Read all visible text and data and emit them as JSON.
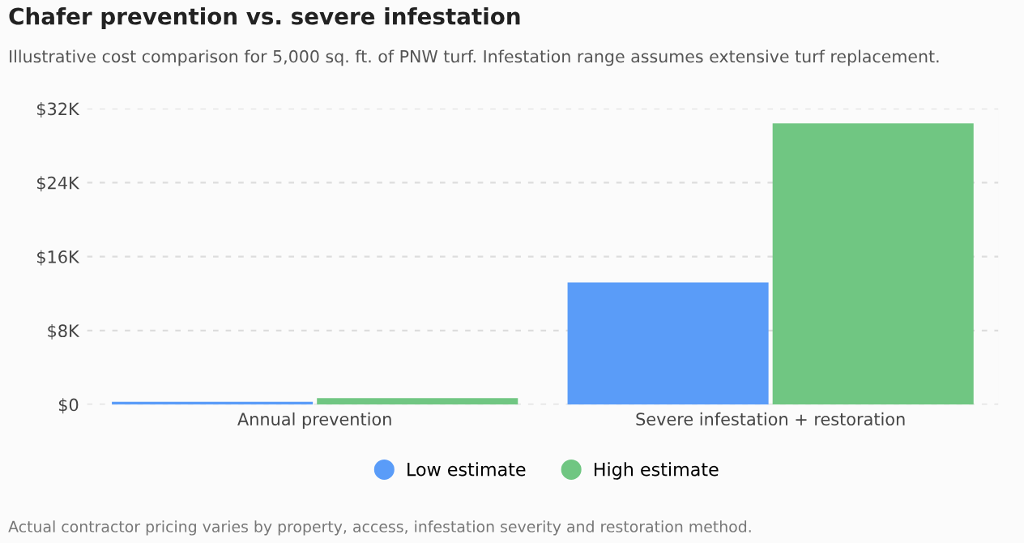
{
  "chart_data": {
    "type": "bar",
    "title": "Chafer prevention vs. severe infestation",
    "subtitle": "Illustrative cost comparison for 5,000 sq. ft. of PNW turf. Infestation range assumes extensive turf replacement.",
    "categories": [
      "Annual prevention",
      "Severe infestation + restoration"
    ],
    "series": [
      {
        "name": "Low estimate",
        "color": "#5a9cf8",
        "values": [
          300,
          13200
        ]
      },
      {
        "name": "High estimate",
        "color": "#70c682",
        "values": [
          700,
          30400
        ]
      }
    ],
    "ylim": [
      0,
      32000
    ],
    "yticks": [
      {
        "value": 0,
        "label": "$0"
      },
      {
        "value": 8000,
        "label": "$8K"
      },
      {
        "value": 16000,
        "label": "$16K"
      },
      {
        "value": 24000,
        "label": "$24K"
      },
      {
        "value": 32000,
        "label": "$32K"
      }
    ],
    "grid": "y",
    "legend": "bottom",
    "annotations": [
      "Actual contractor pricing varies by property, access, infestation severity and restoration method."
    ]
  }
}
